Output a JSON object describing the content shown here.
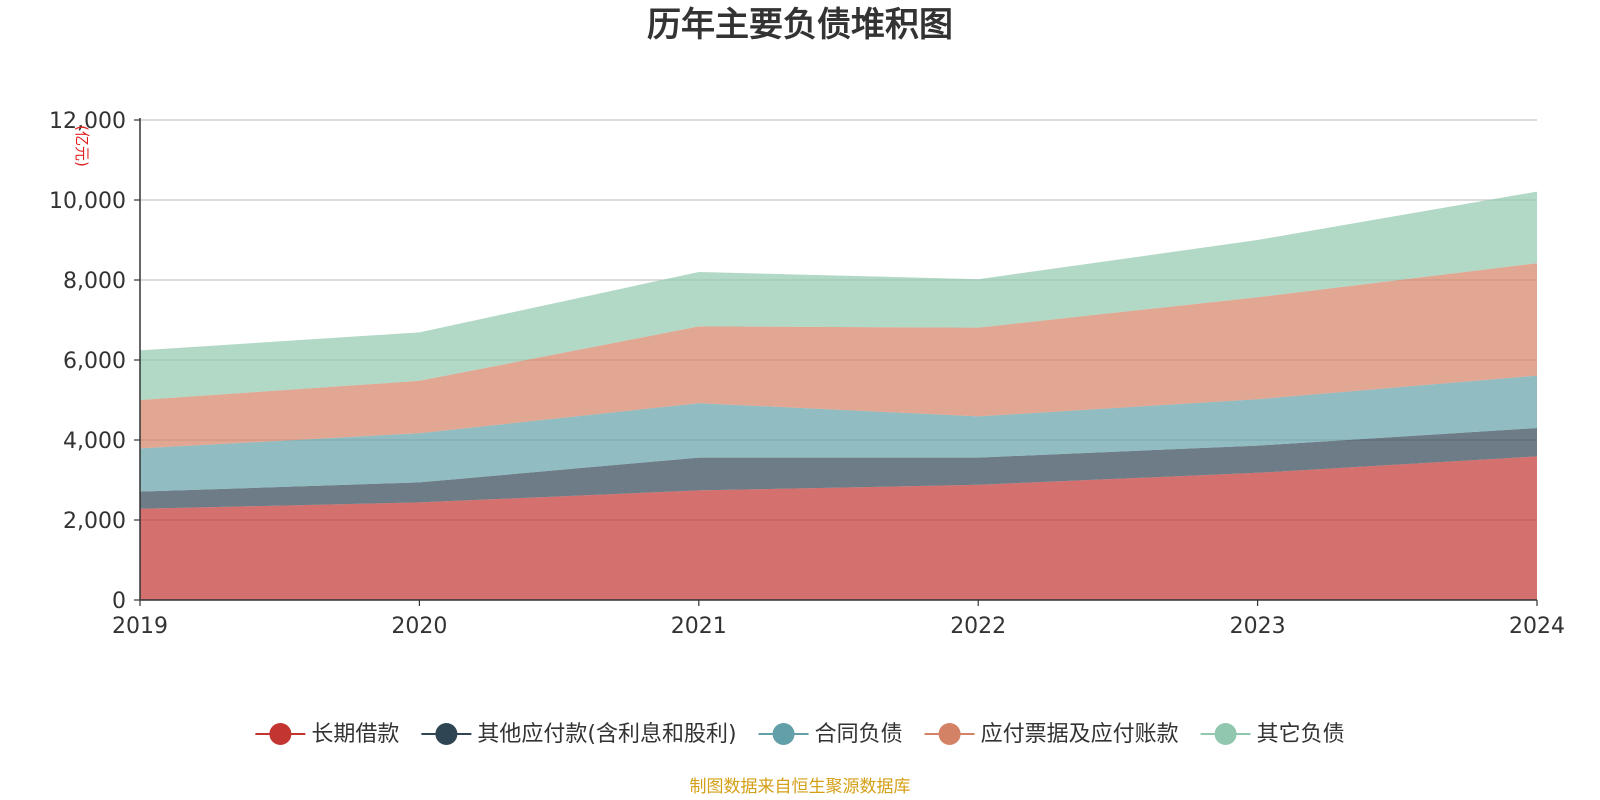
{
  "chart_data": {
    "type": "area",
    "stacked": true,
    "title": "历年主要负债堆积图",
    "unit_label": "(亿元)",
    "x": [
      "2019",
      "2020",
      "2021",
      "2022",
      "2023",
      "2024"
    ],
    "y_ticks": [
      "0",
      "2,000",
      "4,000",
      "6,000",
      "8,000",
      "10,000",
      "12,000"
    ],
    "ylim": [
      0,
      12000
    ],
    "grid": true,
    "legend_position": "bottom",
    "series": [
      {
        "name": "长期借款",
        "color": "#c23531",
        "values": [
          2280,
          2440,
          2740,
          2880,
          3180,
          3590
        ]
      },
      {
        "name": "其他应付款(含利息和股利)",
        "color": "#2f4554",
        "values": [
          430,
          500,
          820,
          680,
          680,
          710
        ]
      },
      {
        "name": "合同负债",
        "color": "#61a0a8",
        "values": [
          1080,
          1230,
          1360,
          1030,
          1160,
          1310
        ]
      },
      {
        "name": "应付票据及应付账款",
        "color": "#d48265",
        "values": [
          1210,
          1310,
          1920,
          2220,
          2550,
          2810
        ]
      },
      {
        "name": "其它负债",
        "color": "#91c7ae",
        "values": [
          1240,
          1210,
          1360,
          1210,
          1430,
          1790
        ]
      }
    ],
    "source": "制图数据来自恒生聚源数据库"
  }
}
